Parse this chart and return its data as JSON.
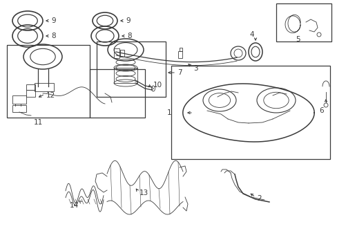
{
  "bg_color": "#ffffff",
  "lc": "#3a3a3a",
  "figsize": [
    4.89,
    3.6
  ],
  "dpi": 100
}
